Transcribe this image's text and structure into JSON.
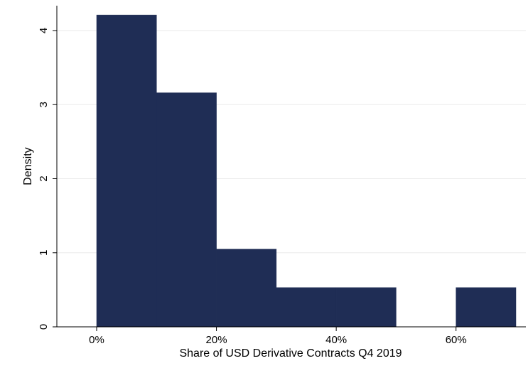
{
  "chart_data": {
    "type": "bar",
    "title": "",
    "xlabel": "Share of USD Derivative Contracts Q4 2019",
    "ylabel": "Density",
    "xlim": [
      -0.05,
      0.71
    ],
    "ylim": [
      0,
      4.5
    ],
    "grid": true,
    "legend": "none",
    "bin_width": 0.1,
    "bins": [
      {
        "x0": 0.0,
        "x1": 0.1,
        "density": 4.21
      },
      {
        "x0": 0.1,
        "x1": 0.2,
        "density": 3.16
      },
      {
        "x0": 0.2,
        "x1": 0.3,
        "density": 1.05
      },
      {
        "x0": 0.3,
        "x1": 0.4,
        "density": 0.53
      },
      {
        "x0": 0.4,
        "x1": 0.5,
        "density": 0.53
      },
      {
        "x0": 0.5,
        "x1": 0.6,
        "density": 0.0
      },
      {
        "x0": 0.6,
        "x1": 0.7,
        "density": 0.53
      }
    ],
    "x_ticks": [
      {
        "value": 0.0,
        "label": "0%"
      },
      {
        "value": 0.2,
        "label": "20%"
      },
      {
        "value": 0.4,
        "label": "40%"
      },
      {
        "value": 0.6,
        "label": "60%"
      }
    ],
    "y_ticks": [
      {
        "value": 0,
        "label": "0"
      },
      {
        "value": 1,
        "label": "1"
      },
      {
        "value": 2,
        "label": "2"
      },
      {
        "value": 3,
        "label": "3"
      },
      {
        "value": 4,
        "label": "4"
      }
    ],
    "colors": {
      "bar": "#1f2d55",
      "grid": "#eaeaea",
      "axis": "#000000"
    }
  }
}
